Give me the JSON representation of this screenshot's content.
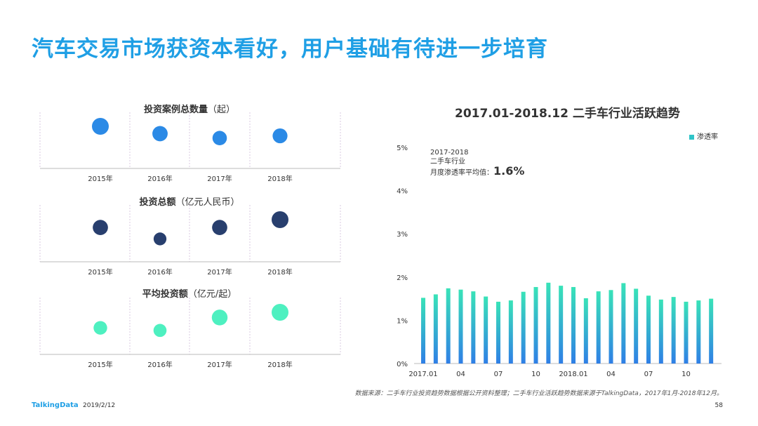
{
  "page": {
    "title": "汽车交易市场获资本看好，用户基础有待进一步培育",
    "source": "数据来源：二手车行业投资趋势数据根据公开资料整理；二手车行业活跃趋势数据来源于TalkingData，2017年1月-2018年12月。",
    "logo": "TalkingData",
    "date": "2019/2/12",
    "page_number": "58"
  },
  "colors": {
    "count": "#2b8ae6",
    "amount": "#283f6e",
    "average": "#4ef0c0",
    "bar_top": "#39e3b8",
    "bar_bottom": "#2f7fe6"
  },
  "chart_data": [
    {
      "type": "scatter",
      "title": "投资案例总数量",
      "unit": "（起）",
      "categories": [
        "2015年",
        "2016年",
        "2017年",
        "2018年"
      ],
      "values": [
        4.6,
        3.6,
        3.0,
        3.3
      ]
    },
    {
      "type": "scatter",
      "title": "投资总额",
      "unit": "（亿元人民币）",
      "categories": [
        "2015年",
        "2016年",
        "2017年",
        "2018年"
      ],
      "values": [
        4.3,
        2.4,
        4.3,
        5.6
      ]
    },
    {
      "type": "scatter",
      "title": "平均投资额",
      "unit": "（亿元/起）",
      "categories": [
        "2015年",
        "2016年",
        "2017年",
        "2018年"
      ],
      "values": [
        2.8,
        2.4,
        4.4,
        5.2
      ]
    },
    {
      "type": "bar",
      "title": "2017.01-2018.12  二手车行业活跃趋势",
      "legend": "渗透率",
      "legend_position": "top-right",
      "y_ticks": [
        "0%",
        "1%",
        "2%",
        "3%",
        "4%",
        "5%"
      ],
      "ylim": [
        0,
        5
      ],
      "x_tick_labels": [
        "2017.01",
        "04",
        "07",
        "10",
        "2018.01",
        "04",
        "07",
        "10"
      ],
      "x_tick_index": [
        0,
        3,
        6,
        9,
        12,
        15,
        18,
        21
      ],
      "values": [
        1.52,
        1.6,
        1.74,
        1.71,
        1.67,
        1.55,
        1.43,
        1.46,
        1.66,
        1.77,
        1.87,
        1.8,
        1.77,
        1.51,
        1.67,
        1.7,
        1.86,
        1.73,
        1.57,
        1.48,
        1.54,
        1.43,
        1.46,
        1.5
      ],
      "annotation": {
        "line1": "2017-2018",
        "line2": "二手车行业",
        "line3": "月度渗透率平均值：",
        "value": "1.6%"
      }
    }
  ]
}
